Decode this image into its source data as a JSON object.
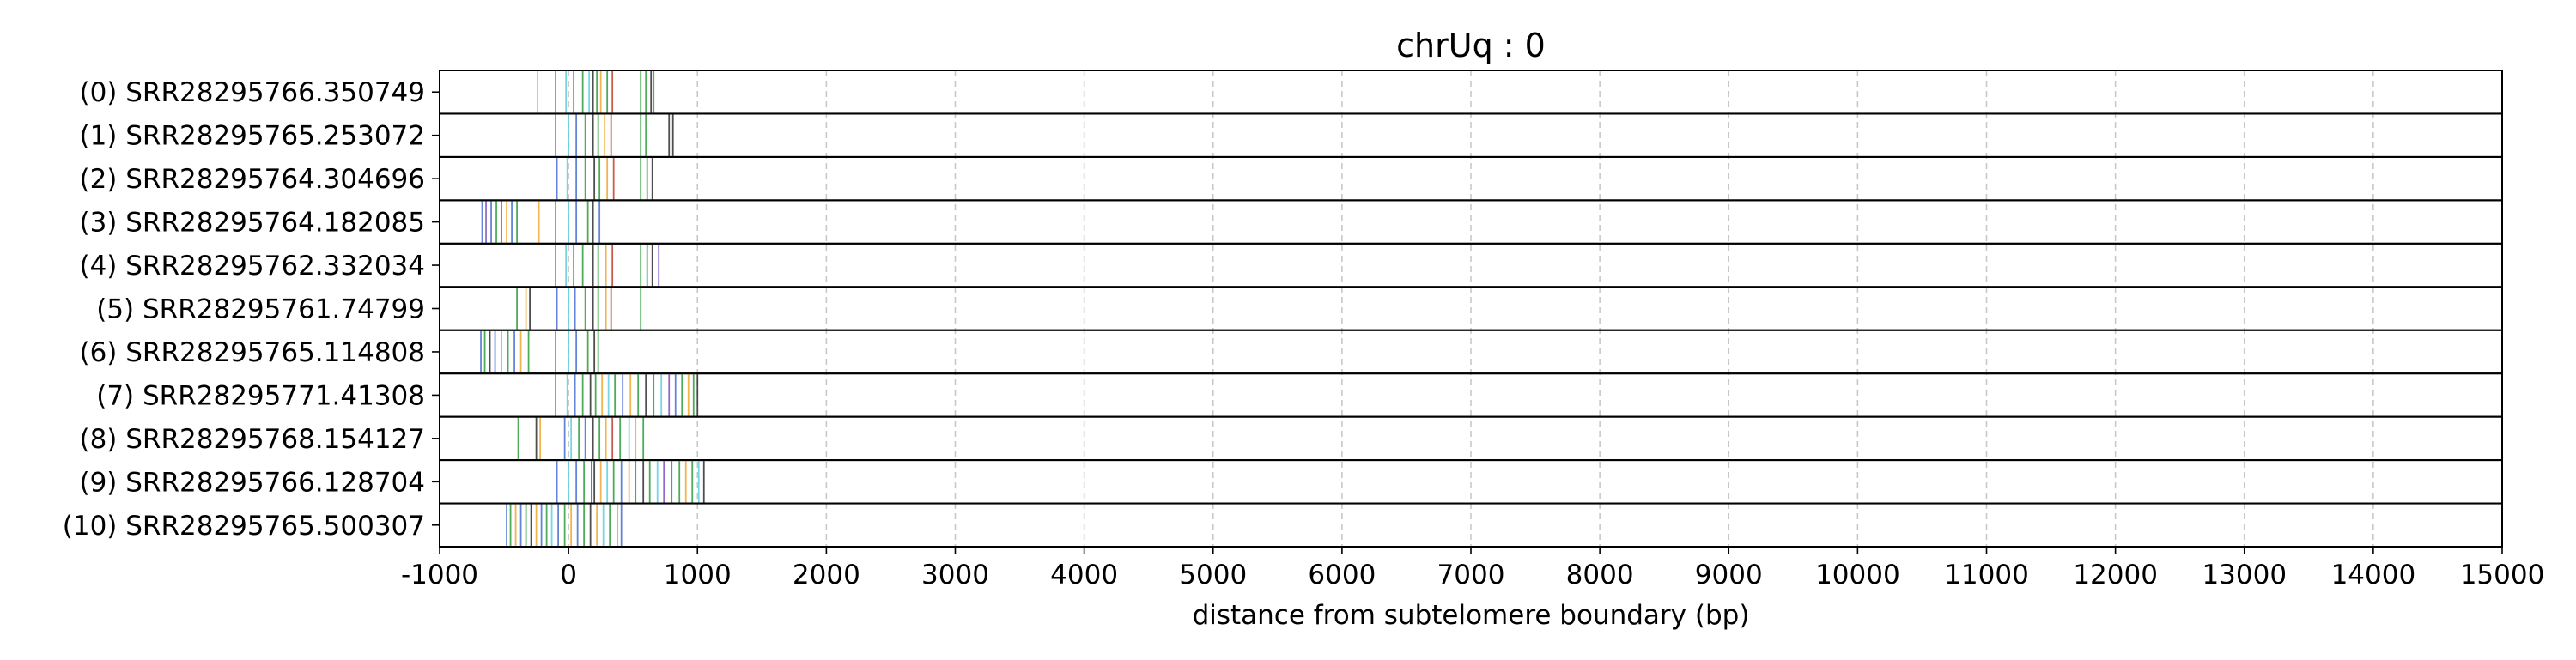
{
  "chart_data": {
    "type": "tick-track",
    "title": "chrUq : 0",
    "xlabel": "distance from subtelomere boundary (bp)",
    "ylabel": "",
    "xlim": [
      -1000,
      15000
    ],
    "xticks": [
      -1000,
      0,
      1000,
      2000,
      3000,
      4000,
      5000,
      6000,
      7000,
      8000,
      9000,
      10000,
      11000,
      12000,
      13000,
      14000,
      15000
    ],
    "grid": "vertical dashed",
    "colors": {
      "blue": "#4a6fd1",
      "orange": "#f0a830",
      "green": "#2f9e3c",
      "cyan": "#5fd0e0",
      "dark": "#303030",
      "red": "#c04030",
      "purple": "#8050c0"
    },
    "reads": [
      {
        "label": "(0) SRR28295766.350749",
        "ticks": [
          [
            -240,
            "orange"
          ],
          [
            -100,
            "blue"
          ],
          [
            -20,
            "cyan"
          ],
          [
            40,
            "blue"
          ],
          [
            110,
            "green"
          ],
          [
            160,
            "cyan"
          ],
          [
            190,
            "dark"
          ],
          [
            220,
            "green"
          ],
          [
            250,
            "orange"
          ],
          [
            300,
            "green"
          ],
          [
            340,
            "red"
          ],
          [
            560,
            "green"
          ],
          [
            600,
            "green"
          ],
          [
            640,
            "dark"
          ],
          [
            660,
            "green"
          ]
        ]
      },
      {
        "label": "(1) SRR28295765.253072",
        "ticks": [
          [
            -100,
            "blue"
          ],
          [
            0,
            "cyan"
          ],
          [
            60,
            "blue"
          ],
          [
            130,
            "green"
          ],
          [
            190,
            "dark"
          ],
          [
            230,
            "green"
          ],
          [
            280,
            "orange"
          ],
          [
            330,
            "red"
          ],
          [
            560,
            "green"
          ],
          [
            600,
            "green"
          ],
          [
            780,
            "dark"
          ],
          [
            810,
            "dark"
          ]
        ]
      },
      {
        "label": "(2) SRR28295764.304696",
        "ticks": [
          [
            -90,
            "blue"
          ],
          [
            -10,
            "cyan"
          ],
          [
            60,
            "blue"
          ],
          [
            130,
            "green"
          ],
          [
            200,
            "dark"
          ],
          [
            240,
            "green"
          ],
          [
            300,
            "orange"
          ],
          [
            350,
            "red"
          ],
          [
            560,
            "green"
          ],
          [
            610,
            "green"
          ],
          [
            650,
            "dark"
          ]
        ]
      },
      {
        "label": "(3) SRR28295764.182085",
        "ticks": [
          [
            -670,
            "blue"
          ],
          [
            -640,
            "purple"
          ],
          [
            -600,
            "blue"
          ],
          [
            -560,
            "green"
          ],
          [
            -520,
            "blue"
          ],
          [
            -480,
            "orange"
          ],
          [
            -440,
            "blue"
          ],
          [
            -400,
            "green"
          ],
          [
            -230,
            "orange"
          ],
          [
            -100,
            "blue"
          ],
          [
            0,
            "cyan"
          ],
          [
            60,
            "blue"
          ],
          [
            150,
            "green"
          ],
          [
            190,
            "dark"
          ],
          [
            240,
            "blue"
          ]
        ]
      },
      {
        "label": "(4) SRR28295762.332034",
        "ticks": [
          [
            -100,
            "blue"
          ],
          [
            -20,
            "cyan"
          ],
          [
            40,
            "blue"
          ],
          [
            110,
            "green"
          ],
          [
            190,
            "dark"
          ],
          [
            230,
            "green"
          ],
          [
            290,
            "orange"
          ],
          [
            340,
            "red"
          ],
          [
            560,
            "green"
          ],
          [
            610,
            "green"
          ],
          [
            650,
            "dark"
          ],
          [
            700,
            "purple"
          ]
        ]
      },
      {
        "label": "(5) SRR28295761.74799",
        "ticks": [
          [
            -400,
            "green"
          ],
          [
            -330,
            "orange"
          ],
          [
            -300,
            "dark"
          ],
          [
            -90,
            "blue"
          ],
          [
            0,
            "cyan"
          ],
          [
            50,
            "blue"
          ],
          [
            130,
            "green"
          ],
          [
            190,
            "dark"
          ],
          [
            230,
            "green"
          ],
          [
            290,
            "orange"
          ],
          [
            330,
            "red"
          ],
          [
            560,
            "green"
          ]
        ]
      },
      {
        "label": "(6) SRR28295765.114808",
        "ticks": [
          [
            -680,
            "blue"
          ],
          [
            -650,
            "green"
          ],
          [
            -610,
            "dark"
          ],
          [
            -570,
            "blue"
          ],
          [
            -520,
            "orange"
          ],
          [
            -470,
            "green"
          ],
          [
            -420,
            "blue"
          ],
          [
            -370,
            "orange"
          ],
          [
            -310,
            "green"
          ],
          [
            -100,
            "blue"
          ],
          [
            0,
            "cyan"
          ],
          [
            60,
            "blue"
          ],
          [
            150,
            "green"
          ],
          [
            200,
            "dark"
          ],
          [
            230,
            "green"
          ]
        ]
      },
      {
        "label": "(7) SRR28295771.41308",
        "ticks": [
          [
            -100,
            "blue"
          ],
          [
            -10,
            "cyan"
          ],
          [
            50,
            "blue"
          ],
          [
            110,
            "green"
          ],
          [
            170,
            "dark"
          ],
          [
            210,
            "green"
          ],
          [
            260,
            "orange"
          ],
          [
            310,
            "cyan"
          ],
          [
            360,
            "green"
          ],
          [
            420,
            "blue"
          ],
          [
            480,
            "orange"
          ],
          [
            540,
            "green"
          ],
          [
            600,
            "dark"
          ],
          [
            660,
            "green"
          ],
          [
            720,
            "cyan"
          ],
          [
            780,
            "purple"
          ],
          [
            830,
            "blue"
          ],
          [
            880,
            "green"
          ],
          [
            930,
            "orange"
          ],
          [
            970,
            "green"
          ],
          [
            1000,
            "dark"
          ]
        ]
      },
      {
        "label": "(8) SRR28295768.154127",
        "ticks": [
          [
            -390,
            "green"
          ],
          [
            -250,
            "dark"
          ],
          [
            -220,
            "orange"
          ],
          [
            -30,
            "blue"
          ],
          [
            20,
            "cyan"
          ],
          [
            80,
            "green"
          ],
          [
            130,
            "blue"
          ],
          [
            190,
            "dark"
          ],
          [
            240,
            "green"
          ],
          [
            290,
            "orange"
          ],
          [
            340,
            "red"
          ],
          [
            400,
            "green"
          ],
          [
            470,
            "cyan"
          ],
          [
            520,
            "orange"
          ],
          [
            580,
            "green"
          ]
        ]
      },
      {
        "label": "(9) SRR28295766.128704",
        "ticks": [
          [
            -90,
            "blue"
          ],
          [
            0,
            "cyan"
          ],
          [
            60,
            "blue"
          ],
          [
            120,
            "green"
          ],
          [
            180,
            "dark"
          ],
          [
            200,
            "dark"
          ],
          [
            250,
            "orange"
          ],
          [
            300,
            "cyan"
          ],
          [
            350,
            "green"
          ],
          [
            410,
            "blue"
          ],
          [
            470,
            "orange"
          ],
          [
            520,
            "green"
          ],
          [
            580,
            "dark"
          ],
          [
            630,
            "green"
          ],
          [
            690,
            "cyan"
          ],
          [
            740,
            "purple"
          ],
          [
            800,
            "blue"
          ],
          [
            860,
            "green"
          ],
          [
            910,
            "orange"
          ],
          [
            960,
            "green"
          ],
          [
            1010,
            "cyan"
          ],
          [
            1050,
            "dark"
          ]
        ]
      },
      {
        "label": "(10) SRR28295765.500307",
        "ticks": [
          [
            -480,
            "blue"
          ],
          [
            -450,
            "green"
          ],
          [
            -410,
            "orange"
          ],
          [
            -370,
            "blue"
          ],
          [
            -330,
            "green"
          ],
          [
            -290,
            "dark"
          ],
          [
            -250,
            "orange"
          ],
          [
            -210,
            "blue"
          ],
          [
            -170,
            "green"
          ],
          [
            -130,
            "cyan"
          ],
          [
            -80,
            "blue"
          ],
          [
            -30,
            "green"
          ],
          [
            20,
            "orange"
          ],
          [
            70,
            "blue"
          ],
          [
            120,
            "green"
          ],
          [
            170,
            "dark"
          ],
          [
            220,
            "orange"
          ],
          [
            270,
            "cyan"
          ],
          [
            320,
            "green"
          ],
          [
            380,
            "orange"
          ],
          [
            410,
            "blue"
          ]
        ]
      }
    ]
  }
}
